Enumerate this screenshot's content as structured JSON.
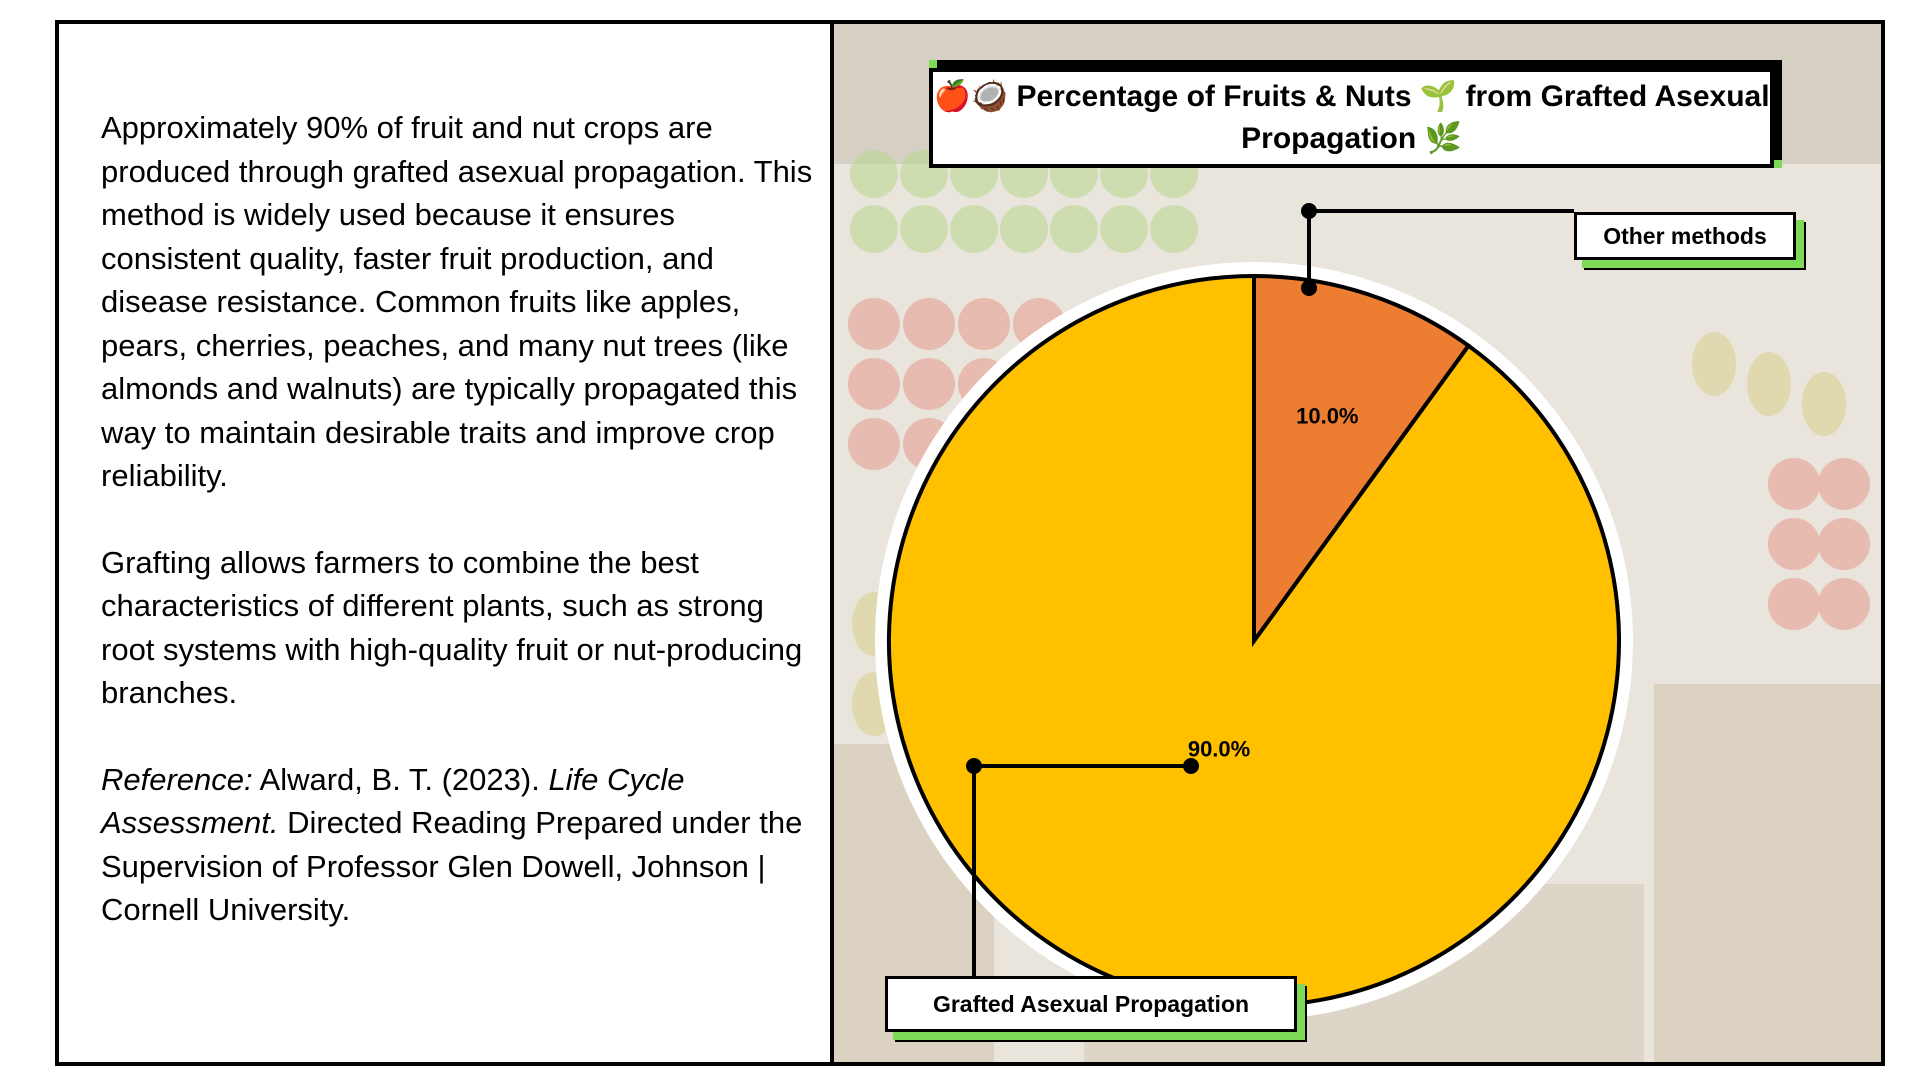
{
  "text": {
    "p1": "Approximately 90% of fruit and nut crops are produced through grafted asexual propagation. This method is widely used because it ensures consistent quality, faster fruit production, and disease resistance. Common fruits like apples, pears, cherries, peaches, and many nut trees (like almonds and walnuts) are typically propagated this way to maintain desirable traits and improve crop reliability.",
    "p2": "Grafting allows farmers to combine the best characteristics of different plants, such as strong root systems with high-quality fruit or nut-producing branches.",
    "ref_label": "Reference:",
    "ref_author": " Alward, B. T. (2023). ",
    "ref_title": "Life Cycle Assessment.",
    "ref_rest": " Directed Reading Prepared under the Supervision of Professor Glen Dowell, Johnson | Cornell University."
  },
  "chart_data": {
    "type": "pie",
    "title": "🍎🥥 Percentage of Fruits & Nuts 🌱 from Grafted Asexual Propagation 🌿",
    "slices": [
      {
        "name": "Other methods",
        "value": 10.0,
        "label": "10.0%",
        "color": "#ed7d31"
      },
      {
        "name": "Grafted Asexual Propagation",
        "value": 90.0,
        "label": "90.0%",
        "color": "#ffc000"
      }
    ],
    "data_labels": true,
    "legend": "none"
  },
  "colors": {
    "outline": "#000000",
    "callout_accent": "#7ed957",
    "ring": "#ffffff"
  }
}
